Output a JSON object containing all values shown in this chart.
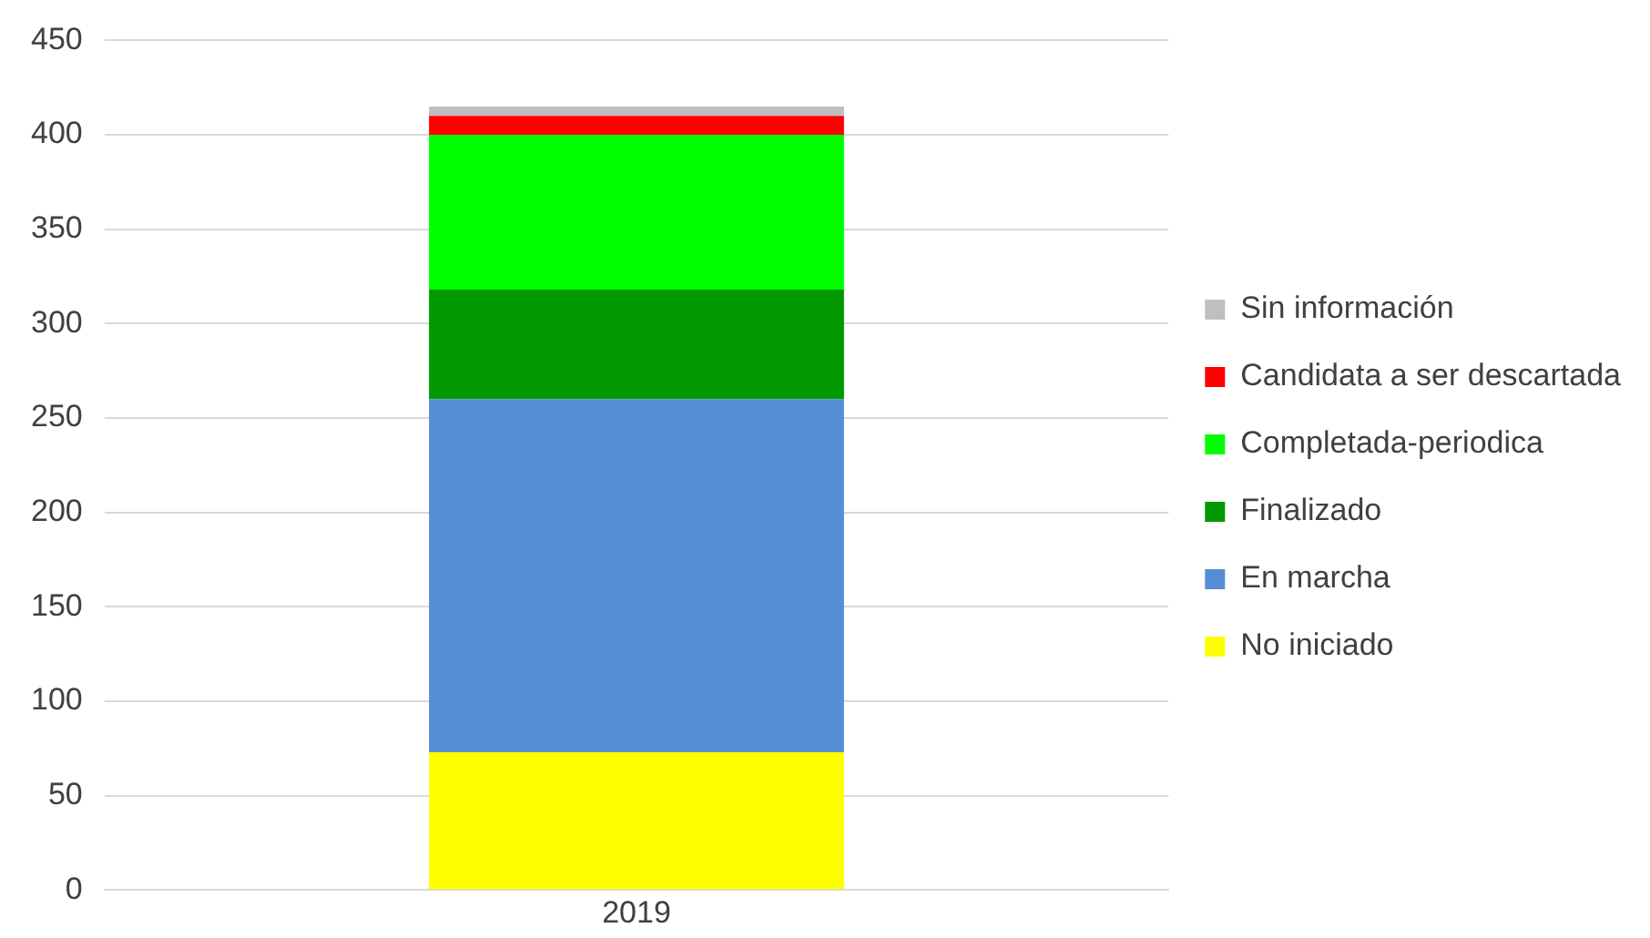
{
  "chart_data": {
    "type": "bar",
    "stacked": true,
    "categories": [
      "2019"
    ],
    "series": [
      {
        "name": "No iniciado",
        "color": "#ffff00",
        "values": [
          73
        ]
      },
      {
        "name": "En marcha",
        "color": "#558ed5",
        "values": [
          187
        ]
      },
      {
        "name": "Finalizado",
        "color": "#009900",
        "values": [
          58
        ]
      },
      {
        "name": "Completada-periodica",
        "color": "#00ff00",
        "values": [
          82
        ]
      },
      {
        "name": "Candidata a ser descartada",
        "color": "#ff0000",
        "values": [
          10
        ]
      },
      {
        "name": "Sin información",
        "color": "#bfbfbf",
        "values": [
          5
        ]
      }
    ],
    "ylim": [
      0,
      450
    ],
    "yticks": [
      0,
      50,
      100,
      150,
      200,
      250,
      300,
      350,
      400,
      450
    ],
    "grid": "y",
    "legend": "right"
  }
}
